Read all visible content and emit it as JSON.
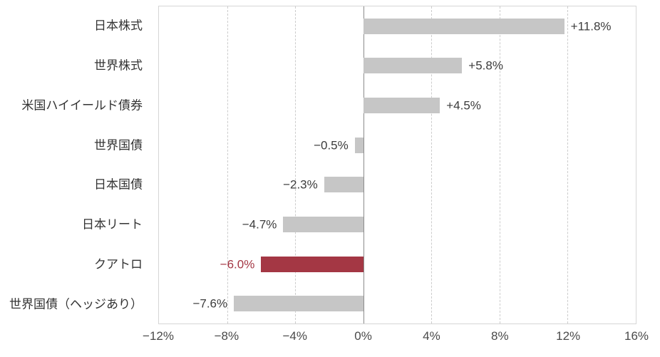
{
  "chart_data": {
    "type": "bar",
    "orientation": "horizontal",
    "title": "",
    "categories": [
      "日本株式",
      "世界株式",
      "米国ハイイールド債券",
      "世界国債",
      "日本国債",
      "日本リート",
      "クアトロ",
      "世界国債（ヘッジあり）"
    ],
    "values": [
      11.8,
      5.8,
      4.5,
      -0.5,
      -2.3,
      -4.7,
      -6.0,
      -7.6
    ],
    "value_labels": [
      "+11.8%",
      "+5.8%",
      "+4.5%",
      "−0.5%",
      "−2.3%",
      "−4.7%",
      "−6.0%",
      "−7.6%"
    ],
    "highlight_index": 6,
    "xlim": [
      -12,
      16
    ],
    "x_ticks": [
      -12,
      -8,
      -4,
      0,
      4,
      8,
      12,
      16
    ],
    "x_tick_labels": [
      "−12%",
      "−8%",
      "−4%",
      "0%",
      "4%",
      "8%",
      "12%",
      "16%"
    ],
    "grid": "dashed-vertical",
    "legend": "none",
    "colors": {
      "bar": "#c6c6c6",
      "highlight": "#a43744",
      "label": "#3c3c3c",
      "highlight_label": "#a43744",
      "grid": "#cccccc",
      "zero_line": "#8c8c8c",
      "border": "#d6d6d6",
      "background": "#ffffff"
    }
  }
}
